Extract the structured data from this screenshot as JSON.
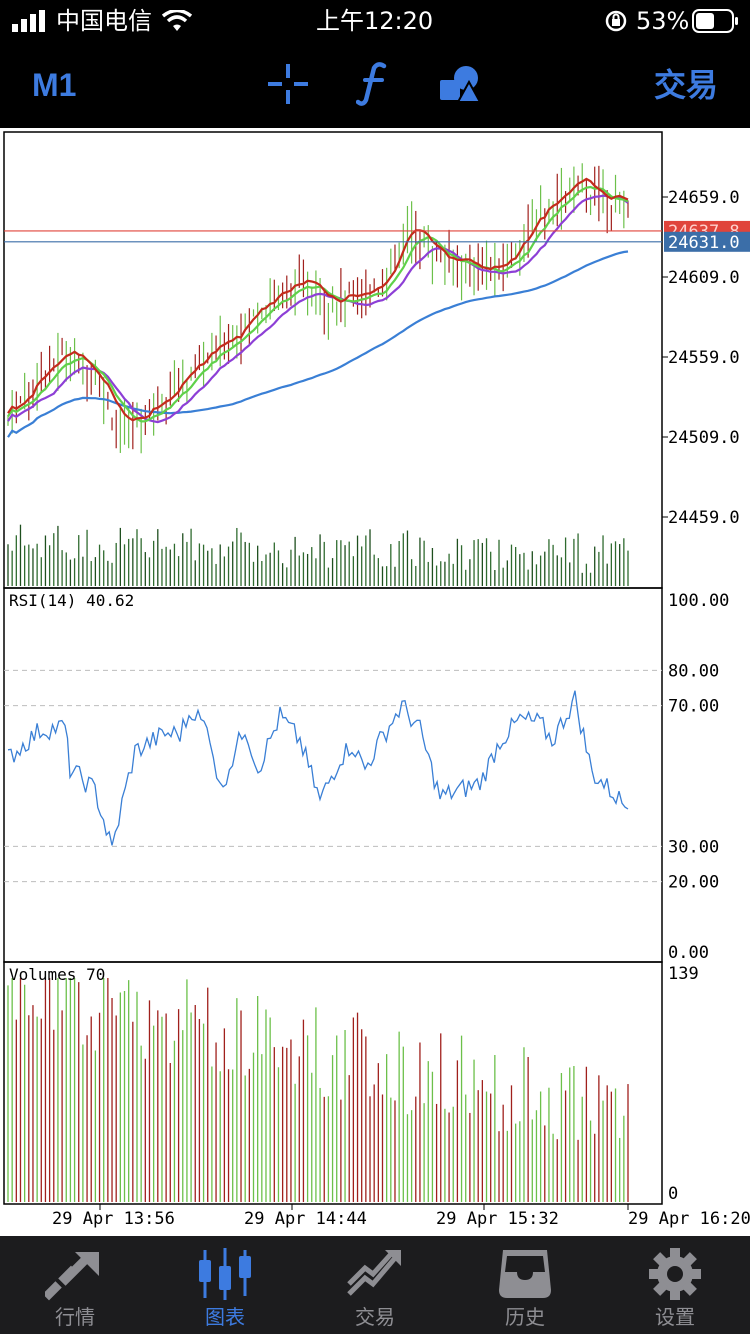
{
  "status_bar": {
    "carrier": "中国电信",
    "time": "上午12:20",
    "battery": "53%",
    "battery_level": 0.53
  },
  "toolbar": {
    "timeframe": "M1",
    "trade_label": "交易",
    "icons": [
      "crosshair-icon",
      "indicators-icon",
      "objects-icon"
    ]
  },
  "main_chart": {
    "price_labels": [
      "24659.0",
      "24609.0",
      "24559.0",
      "24509.0",
      "24459.0"
    ],
    "price_values": [
      24659.0,
      24609.0,
      24559.0,
      24509.0,
      24459.0
    ],
    "ask_label": "24637.8",
    "bid_label": "24631.0",
    "ask_value": 24637.8,
    "bid_value": 24631.0,
    "ask_color": "#e0443b",
    "bid_color": "#3b6ea8"
  },
  "rsi_panel": {
    "title": "RSI(14) 40.62",
    "levels": [
      "100.00",
      "80.00",
      "70.00",
      "30.00",
      "20.00",
      "0.00"
    ],
    "level_values": [
      100,
      80,
      70,
      30,
      20,
      0
    ]
  },
  "volume_panel": {
    "title": "Volumes 70",
    "max_label": "139",
    "min_label": "0",
    "max_value": 139,
    "min_value": 0
  },
  "time_axis": [
    "29 Apr 13:56",
    "29 Apr 14:44",
    "29 Apr 15:32",
    "29 Apr 16:20"
  ],
  "tabs": [
    {
      "label": "行情",
      "icon": "quotes-icon",
      "active": false
    },
    {
      "label": "图表",
      "icon": "chart-icon",
      "active": true
    },
    {
      "label": "交易",
      "icon": "trade-icon",
      "active": false
    },
    {
      "label": "历史",
      "icon": "history-icon",
      "active": false
    },
    {
      "label": "设置",
      "icon": "settings-icon",
      "active": false
    }
  ],
  "colors": {
    "accent": "#3d7be0",
    "bull": "#6cc04a",
    "bear": "#a0201c",
    "rsi_line": "#3a7fd5",
    "ma_fast": "#c42b1c",
    "ma_mid": "#5fd14a",
    "ma_slow": "#8d3fd6",
    "ma_long": "#3a7fd5"
  }
}
